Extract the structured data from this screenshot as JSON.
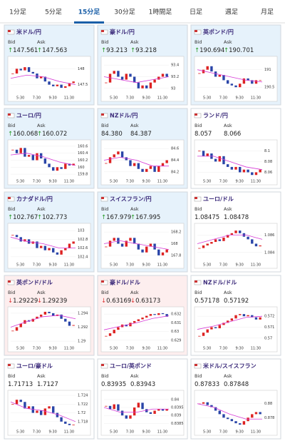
{
  "tabs": {
    "items": [
      "1分足",
      "5分足",
      "15分足",
      "30分足",
      "1時間足",
      "日足",
      "週足",
      "月足"
    ],
    "active": 2
  },
  "labels": {
    "bid": "Bid",
    "ask": "Ask"
  },
  "xticks": [
    "5:30",
    "7:30",
    "9:30",
    "11:30"
  ],
  "cards": [
    {
      "name": "米ドル/円",
      "arrow": "↑",
      "bid": "147.561",
      "ask": "147.563",
      "bg": "#e6f2fb",
      "ylim": [
        147.2,
        148.3
      ],
      "yticks": [
        147.5,
        148
      ],
      "values": [
        147.85,
        148.0,
        147.95,
        148.05,
        147.9,
        147.85,
        147.7,
        147.75,
        147.6,
        147.5,
        147.45,
        147.5,
        147.4,
        147.45,
        147.55,
        147.6
      ],
      "ma": [
        147.7,
        147.8,
        147.75,
        147.6,
        147.5
      ]
    },
    {
      "name": "豪ドル/円",
      "arrow": "↑",
      "bid": "93.213",
      "ask": "93.218",
      "bg": "#e6f2fb",
      "ylim": [
        92.9,
        93.5
      ],
      "yticks": [
        93,
        93.2,
        93.4
      ],
      "values": [
        93.1,
        93.25,
        93.3,
        93.2,
        93.15,
        93.25,
        93.2,
        93.1,
        93.0,
        93.05,
        93.0,
        93.1,
        93.15,
        93.2,
        93.25,
        93.2
      ],
      "ma": [
        93.2,
        93.15,
        93.1,
        93.15,
        93.2
      ]
    },
    {
      "name": "英ポンド/円",
      "arrow": "↑",
      "bid": "190.694",
      "ask": "190.701",
      "bg": "#e6f2fb",
      "ylim": [
        190.3,
        191.3
      ],
      "yticks": [
        190.5,
        191
      ],
      "values": [
        190.9,
        191.0,
        191.1,
        190.95,
        190.8,
        190.85,
        190.7,
        190.6,
        190.55,
        190.5,
        190.6,
        190.75,
        190.7,
        190.6,
        190.7,
        190.7
      ],
      "ma": [
        191.0,
        190.9,
        190.8,
        190.7,
        190.65
      ]
    },
    {
      "name": "ユーロ/円",
      "arrow": "↑",
      "bid": "160.068",
      "ask": "160.072",
      "bg": "#e6f2fb",
      "ylim": [
        159.7,
        160.7
      ],
      "yticks": [
        159.8,
        160,
        160.2,
        160.4,
        160.6
      ],
      "values": [
        160.5,
        160.4,
        160.55,
        160.3,
        160.35,
        160.2,
        160.4,
        160.25,
        160.1,
        160.0,
        159.9,
        160.0,
        159.95,
        160.1,
        160.05,
        160.1
      ],
      "ma": [
        160.35,
        160.4,
        160.3,
        160.15,
        160.05
      ]
    },
    {
      "name": "NZドル/円",
      "bid": "84.380",
      "ask": "84.387",
      "bg": "#e6f2fb",
      "ylim": [
        84.1,
        84.7
      ],
      "yticks": [
        84.2,
        84.4,
        84.6
      ],
      "values": [
        84.35,
        84.45,
        84.5,
        84.55,
        84.45,
        84.4,
        84.3,
        84.35,
        84.25,
        84.2,
        84.25,
        84.3,
        84.2,
        84.3,
        84.35,
        84.4
      ],
      "ma": [
        84.4,
        84.45,
        84.4,
        84.3,
        84.3
      ]
    },
    {
      "name": "ランド/円",
      "bid": "8.057",
      "ask": "8.066",
      "bg": "#ffffff",
      "ylim": [
        8.05,
        8.115
      ],
      "yticks": [
        8.06,
        8.08,
        8.1
      ],
      "values": [
        8.1,
        8.09,
        8.095,
        8.085,
        8.08,
        8.09,
        8.075,
        8.07,
        8.065,
        8.07,
        8.06,
        8.065,
        8.06,
        8.055,
        8.06,
        8.065
      ],
      "ma": [
        8.09,
        8.09,
        8.08,
        8.07,
        8.065
      ]
    },
    {
      "name": "カナダドル/円",
      "arrow": "↑",
      "bid": "102.767",
      "ask": "102.773",
      "bg": "#e6f2fb",
      "ylim": [
        102.3,
        103.1
      ],
      "yticks": [
        102.4,
        102.6,
        102.8,
        103
      ],
      "values": [
        102.9,
        102.85,
        102.75,
        102.8,
        102.7,
        102.75,
        102.6,
        102.65,
        102.55,
        102.6,
        102.5,
        102.45,
        102.55,
        102.6,
        102.7,
        102.75
      ],
      "ma": [
        102.85,
        102.75,
        102.7,
        102.6,
        102.6
      ]
    },
    {
      "name": "スイスフラン/円",
      "arrow": "↑",
      "bid": "167.979",
      "ask": "167.995",
      "bg": "#e6f2fb",
      "ylim": [
        167.7,
        168.3
      ],
      "yticks": [
        167.8,
        168,
        168.2
      ],
      "values": [
        167.95,
        168.05,
        168.1,
        168.0,
        167.95,
        168.05,
        168.1,
        168.0,
        167.9,
        167.85,
        167.95,
        168.0,
        167.9,
        167.8,
        167.85,
        167.9
      ],
      "ma": [
        168.0,
        168.05,
        168.0,
        167.95,
        167.9
      ]
    },
    {
      "name": "ユーロ/ドル",
      "bid": "1.08475",
      "ask": "1.08478",
      "bg": "#ffffff",
      "ylim": [
        1.083,
        1.087
      ],
      "yticks": [
        1.084,
        1.086
      ],
      "values": [
        1.0845,
        1.0848,
        1.085,
        1.0852,
        1.0855,
        1.0853,
        1.0857,
        1.086,
        1.0862,
        1.0865,
        1.0862,
        1.0858,
        1.0855,
        1.085,
        1.0847,
        1.0848
      ],
      "ma": [
        1.085,
        1.0855,
        1.086,
        1.086,
        1.0855
      ]
    },
    {
      "name": "英ポンド/ドル",
      "arrow": "↓",
      "bid": "1.29229",
      "ask": "1.29239",
      "bg": "#fdeeee",
      "ylim": [
        1.2895,
        1.2945
      ],
      "yticks": [
        1.29,
        1.292,
        1.294
      ],
      "values": [
        1.2915,
        1.292,
        1.2925,
        1.293,
        1.2928,
        1.2932,
        1.2935,
        1.2938,
        1.2942,
        1.294,
        1.2936,
        1.2938,
        1.2932,
        1.2928,
        1.2922,
        1.2923
      ],
      "ma": [
        1.292,
        1.2928,
        1.2935,
        1.2937,
        1.2932
      ]
    },
    {
      "name": "豪ドル/ドル",
      "arrow": "↓",
      "bid": "0.63169",
      "ask": "0.63173",
      "bg": "#fdeeee",
      "ylim": [
        0.6285,
        0.6325
      ],
      "yticks": [
        0.629,
        0.63,
        0.631,
        0.632
      ],
      "values": [
        0.6295,
        0.6298,
        0.6302,
        0.6305,
        0.6308,
        0.6306,
        0.631,
        0.6312,
        0.6314,
        0.6316,
        0.6318,
        0.632,
        0.6319,
        0.6321,
        0.632,
        0.6317
      ],
      "ma": [
        0.6302,
        0.6306,
        0.631,
        0.6315,
        0.6318
      ]
    },
    {
      "name": "NZドル/ドル",
      "bid": "0.57178",
      "ask": "0.57192",
      "bg": "#ffffff",
      "ylim": [
        0.5694,
        0.5726
      ],
      "yticks": [
        0.57,
        0.571,
        0.572
      ],
      "values": [
        0.5702,
        0.5705,
        0.5708,
        0.571,
        0.5709,
        0.5712,
        0.5714,
        0.5716,
        0.5718,
        0.5721,
        0.5722,
        0.572,
        0.5721,
        0.5719,
        0.5717,
        0.5719
      ],
      "ma": [
        0.5708,
        0.5711,
        0.5715,
        0.5719,
        0.572
      ]
    },
    {
      "name": "ユーロ/豪ドル",
      "bid": "1.71713",
      "ask": "1.7127",
      "bg": "#ffffff",
      "ylim": [
        1.7165,
        1.7245
      ],
      "yticks": [
        1.718,
        1.72,
        1.722,
        1.724
      ],
      "values": [
        1.722,
        1.723,
        1.7225,
        1.721,
        1.7215,
        1.72,
        1.7205,
        1.7195,
        1.721,
        1.7215,
        1.72,
        1.719,
        1.718,
        1.7175,
        1.7172,
        1.7173
      ],
      "ma": [
        1.7225,
        1.721,
        1.7205,
        1.7195,
        1.718
      ]
    },
    {
      "name": "ユーロ/英ポンド",
      "bid": "0.83935",
      "ask": "0.83943",
      "bg": "#ffffff",
      "ylim": [
        0.8382,
        0.8404
      ],
      "yticks": [
        0.8385,
        0.839,
        0.8395,
        0.84
      ],
      "values": [
        0.8396,
        0.8394,
        0.8397,
        0.8393,
        0.839,
        0.8388,
        0.839,
        0.8395,
        0.8398,
        0.8394,
        0.8392,
        0.8391,
        0.8393,
        0.8394,
        0.8393,
        0.8394
      ],
      "ma": [
        0.8395,
        0.8392,
        0.8392,
        0.8394,
        0.8394
      ]
    },
    {
      "name": "米ドル/スイスフラン",
      "bid": "0.87833",
      "ask": "0.87848",
      "bg": "#ffffff",
      "ylim": [
        0.8765,
        0.8815
      ],
      "yticks": [
        0.878,
        0.88
      ],
      "values": [
        0.88,
        0.8802,
        0.8798,
        0.8795,
        0.879,
        0.8785,
        0.878,
        0.8778,
        0.8775,
        0.8772,
        0.877,
        0.8775,
        0.878,
        0.8785,
        0.8788,
        0.8785
      ],
      "ma": [
        0.88,
        0.8795,
        0.8785,
        0.8778,
        0.8778
      ]
    }
  ]
}
